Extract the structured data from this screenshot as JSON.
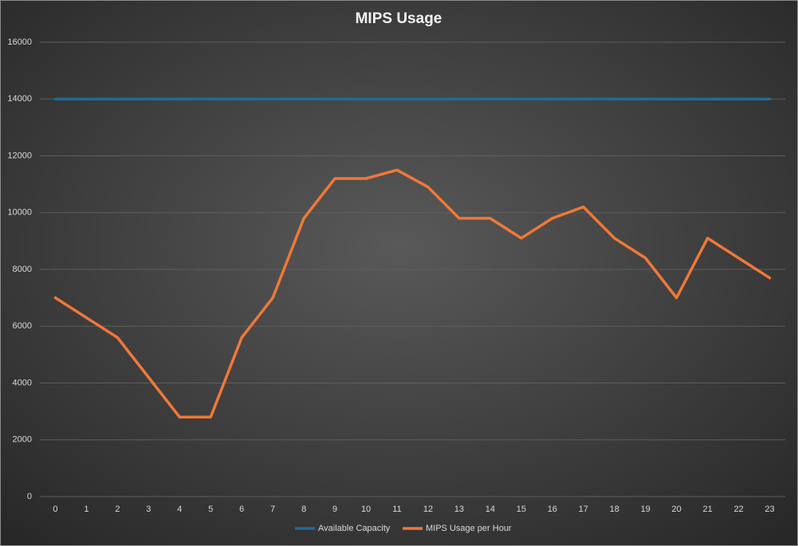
{
  "chart_data": {
    "type": "line",
    "title": "MIPS Usage",
    "categories": [
      "0",
      "1",
      "2",
      "3",
      "4",
      "5",
      "6",
      "7",
      "8",
      "9",
      "10",
      "11",
      "12",
      "13",
      "14",
      "15",
      "16",
      "17",
      "18",
      "19",
      "20",
      "21",
      "22",
      "23"
    ],
    "series": [
      {
        "name": "Available Capacity",
        "color": "#1f6b99",
        "values": [
          14000,
          14000,
          14000,
          14000,
          14000,
          14000,
          14000,
          14000,
          14000,
          14000,
          14000,
          14000,
          14000,
          14000,
          14000,
          14000,
          14000,
          14000,
          14000,
          14000,
          14000,
          14000,
          14000,
          14000
        ]
      },
      {
        "name": "MIPS Usage per Hour",
        "color": "#f07838",
        "values": [
          7000,
          6300,
          5600,
          4200,
          2800,
          2800,
          5600,
          7000,
          9800,
          11200,
          11200,
          11500,
          10900,
          9800,
          9800,
          9100,
          9800,
          10200,
          9100,
          8400,
          7000,
          9100,
          8400,
          7700
        ]
      }
    ],
    "ylim": [
      0,
      16000
    ],
    "yticks": [
      0,
      2000,
      4000,
      6000,
      8000,
      10000,
      12000,
      14000,
      16000
    ],
    "grid": true,
    "legend": "bottom"
  }
}
